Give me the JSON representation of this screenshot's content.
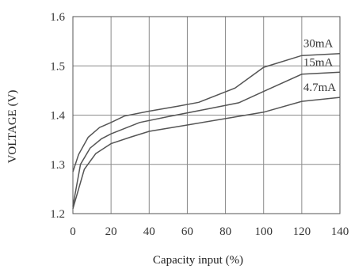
{
  "chart_data": {
    "type": "line",
    "title": "",
    "xlabel": "Capacity input (%)",
    "ylabel": "VOLTAGE (V)",
    "xlim": [
      0,
      140
    ],
    "ylim": [
      1.2,
      1.6
    ],
    "x_ticks": [
      0,
      20,
      40,
      60,
      80,
      100,
      120,
      140
    ],
    "y_ticks": [
      1.2,
      1.3,
      1.4,
      1.5,
      1.6
    ],
    "y_tick_labels": [
      "1.2",
      "1.3",
      "1.4",
      "1.5",
      "1.6"
    ],
    "grid": true,
    "series": [
      {
        "name": "30mA",
        "points": [
          [
            0,
            1.285
          ],
          [
            3,
            1.32
          ],
          [
            8,
            1.355
          ],
          [
            14,
            1.375
          ],
          [
            20,
            1.385
          ],
          [
            27,
            1.398
          ],
          [
            40,
            1.408
          ],
          [
            55,
            1.418
          ],
          [
            66,
            1.426
          ],
          [
            85,
            1.455
          ],
          [
            100,
            1.497
          ],
          [
            120,
            1.521
          ],
          [
            140,
            1.525
          ]
        ]
      },
      {
        "name": "15mA",
        "points": [
          [
            0,
            1.215
          ],
          [
            4,
            1.3
          ],
          [
            9,
            1.333
          ],
          [
            15,
            1.352
          ],
          [
            20,
            1.362
          ],
          [
            35,
            1.385
          ],
          [
            50,
            1.397
          ],
          [
            70,
            1.412
          ],
          [
            87,
            1.425
          ],
          [
            100,
            1.448
          ],
          [
            120,
            1.483
          ],
          [
            140,
            1.487
          ]
        ]
      },
      {
        "name": "4.7mA",
        "points": [
          [
            0,
            1.21
          ],
          [
            6,
            1.29
          ],
          [
            12,
            1.322
          ],
          [
            20,
            1.342
          ],
          [
            30,
            1.355
          ],
          [
            40,
            1.367
          ],
          [
            60,
            1.38
          ],
          [
            80,
            1.393
          ],
          [
            100,
            1.406
          ],
          [
            120,
            1.428
          ],
          [
            140,
            1.436
          ]
        ]
      }
    ]
  }
}
